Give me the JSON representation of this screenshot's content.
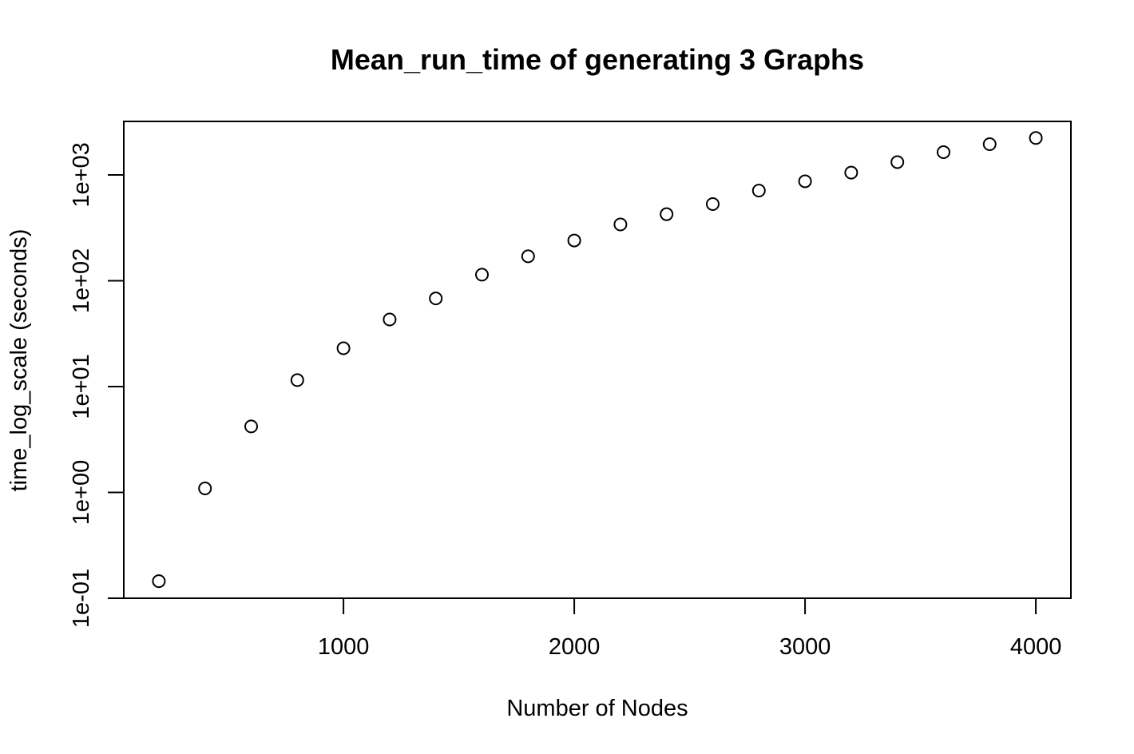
{
  "chart_data": {
    "type": "scatter",
    "title": "Mean_run_time of generating 3 Graphs",
    "xlabel": "Number of Nodes",
    "ylabel": "time_log_scale (seconds)",
    "y_scale": "log10",
    "xlim": [
      48,
      4152
    ],
    "ylim": [
      0.1,
      3200
    ],
    "x_ticks": [
      1000,
      2000,
      3000,
      4000
    ],
    "x_tick_labels": [
      "1000",
      "2000",
      "3000",
      "4000"
    ],
    "y_ticks": [
      0.1,
      1,
      10,
      100,
      1000
    ],
    "y_tick_labels": [
      "1e-01",
      "1e+00",
      "1e+01",
      "1e+02",
      "1e+03"
    ],
    "grid": false,
    "marker": "open-circle",
    "colors": {
      "points": "#000000",
      "axes": "#000000"
    },
    "x": [
      200,
      400,
      600,
      800,
      1000,
      1200,
      1400,
      1600,
      1800,
      2000,
      2200,
      2400,
      2600,
      2800,
      3000,
      3200,
      3400,
      3600,
      3800,
      4000
    ],
    "y": [
      0.145,
      1.09,
      4.2,
      11.5,
      23,
      43,
      68,
      114,
      170,
      240,
      340,
      425,
      530,
      710,
      870,
      1050,
      1320,
      1640,
      1950,
      2230
    ]
  }
}
